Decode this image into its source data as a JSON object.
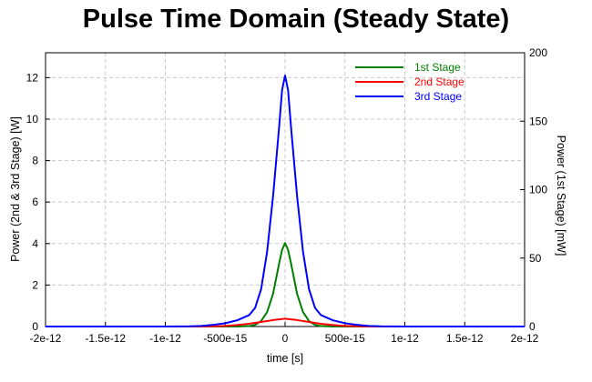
{
  "chart_data": {
    "type": "line",
    "title": "Pulse Time Domain (Steady State)",
    "xlabel": "time [s]",
    "ylabel_left": "Power (2nd & 3rd Stage) [W]",
    "ylabel_right": "Power (1st Stage) [mW]",
    "xlim": [
      -2e-12,
      2e-12
    ],
    "ylim_left": [
      0,
      13.2
    ],
    "ylim_right": [
      0,
      200
    ],
    "grid": true,
    "legend_position": "top-right",
    "x_ticks": [
      {
        "value": -2e-12,
        "label": "-2e-12"
      },
      {
        "value": -1.5e-12,
        "label": "-1.5e-12"
      },
      {
        "value": -1e-12,
        "label": "-1e-12"
      },
      {
        "value": -5e-13,
        "label": "-500e-15"
      },
      {
        "value": 0,
        "label": "0"
      },
      {
        "value": 5e-13,
        "label": "500e-15"
      },
      {
        "value": 1e-12,
        "label": "1e-12"
      },
      {
        "value": 1.5e-12,
        "label": "1.5e-12"
      },
      {
        "value": 2e-12,
        "label": "2e-12"
      }
    ],
    "y_ticks_left": [
      {
        "value": 0,
        "label": "0"
      },
      {
        "value": 2,
        "label": "2"
      },
      {
        "value": 4,
        "label": "4"
      },
      {
        "value": 6,
        "label": "6"
      },
      {
        "value": 8,
        "label": "8"
      },
      {
        "value": 10,
        "label": "10"
      },
      {
        "value": 12,
        "label": "12"
      }
    ],
    "y_ticks_right": [
      {
        "value": 0,
        "label": "0"
      },
      {
        "value": 50,
        "label": "50"
      },
      {
        "value": 100,
        "label": "100"
      },
      {
        "value": 150,
        "label": "150"
      },
      {
        "value": 200,
        "label": "200"
      }
    ],
    "series": [
      {
        "name": "1st Stage",
        "color": "#007f00",
        "axis": "right",
        "x": [
          -2e-12,
          -4e-13,
          -3e-13,
          -2.5e-13,
          -2e-13,
          -1.5e-13,
          -1e-13,
          -5e-14,
          -2.5e-14,
          0,
          2.5e-14,
          5e-14,
          1e-13,
          1.5e-13,
          2e-13,
          2.5e-13,
          3e-13,
          4e-13,
          2e-12
        ],
        "y": [
          0,
          0,
          0.3,
          1.2,
          4,
          10.5,
          24,
          46,
          56,
          61,
          56,
          46,
          24,
          10.5,
          4,
          1.2,
          0.3,
          0,
          0
        ]
      },
      {
        "name": "2nd Stage",
        "color": "#ff0000",
        "axis": "left",
        "x": [
          -2e-12,
          -7e-13,
          -5e-13,
          -4e-13,
          -3e-13,
          -2e-13,
          -1e-13,
          0,
          1e-13,
          2e-13,
          3e-13,
          4e-13,
          5e-13,
          7e-13,
          2e-12
        ],
        "y": [
          0,
          0,
          0.03,
          0.07,
          0.13,
          0.22,
          0.31,
          0.38,
          0.31,
          0.22,
          0.13,
          0.07,
          0.03,
          0,
          0
        ]
      },
      {
        "name": "3rd Stage",
        "color": "#0000ff",
        "axis": "left",
        "x": [
          -2e-12,
          -1e-12,
          -8e-13,
          -7e-13,
          -6e-13,
          -5e-13,
          -4e-13,
          -3e-13,
          -2.5e-13,
          -2e-13,
          -1.5e-13,
          -1e-13,
          -5e-14,
          -2.5e-14,
          0,
          2.5e-14,
          5e-14,
          1e-13,
          1.5e-13,
          2e-13,
          2.5e-13,
          3e-13,
          4e-13,
          5e-13,
          6e-13,
          7e-13,
          8e-13,
          1e-12,
          2e-12
        ],
        "y": [
          0,
          0,
          0.01,
          0.03,
          0.08,
          0.16,
          0.3,
          0.55,
          0.9,
          1.8,
          3.6,
          6.3,
          9.6,
          11.4,
          12.1,
          11.4,
          9.6,
          6.3,
          3.6,
          1.8,
          0.9,
          0.55,
          0.3,
          0.16,
          0.08,
          0.03,
          0.01,
          0,
          0
        ]
      }
    ]
  }
}
